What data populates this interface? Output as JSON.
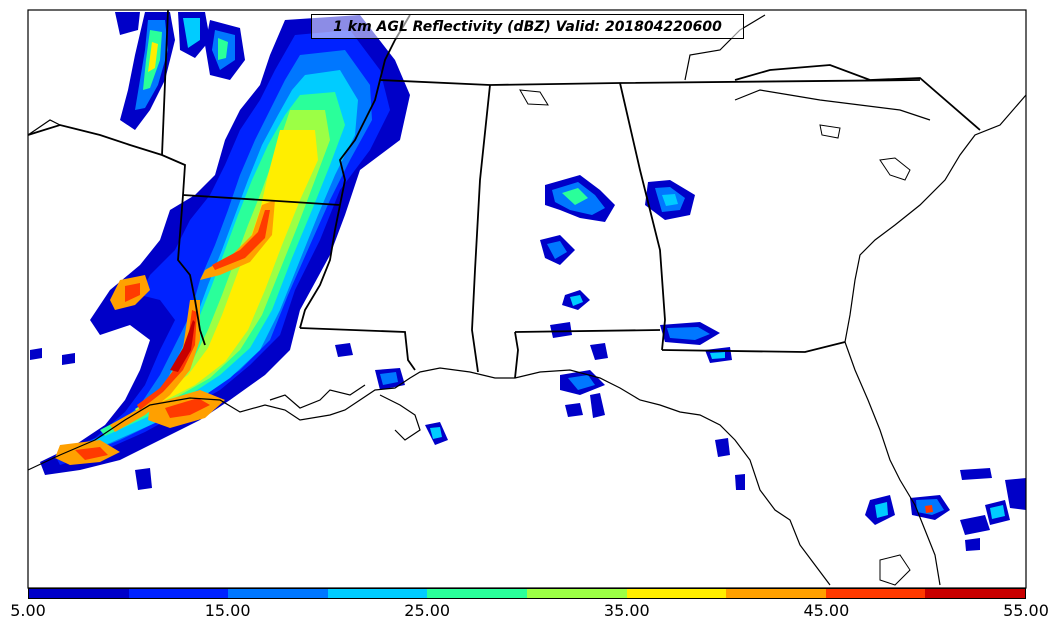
{
  "title": "1 km AGL Reflectivity (dBZ) Valid: 201804220600",
  "colorbar": {
    "colors": [
      "#0000c8",
      "#0022ff",
      "#0077ff",
      "#00ccff",
      "#2aff9a",
      "#9cff45",
      "#ffee00",
      "#ffa000",
      "#ff3a00",
      "#c80000"
    ],
    "ticks": [
      "5.00",
      "15.00",
      "25.00",
      "35.00",
      "45.00",
      "55.00"
    ]
  },
  "colors": {
    "land_border": "#000000",
    "background": "#ffffff"
  }
}
